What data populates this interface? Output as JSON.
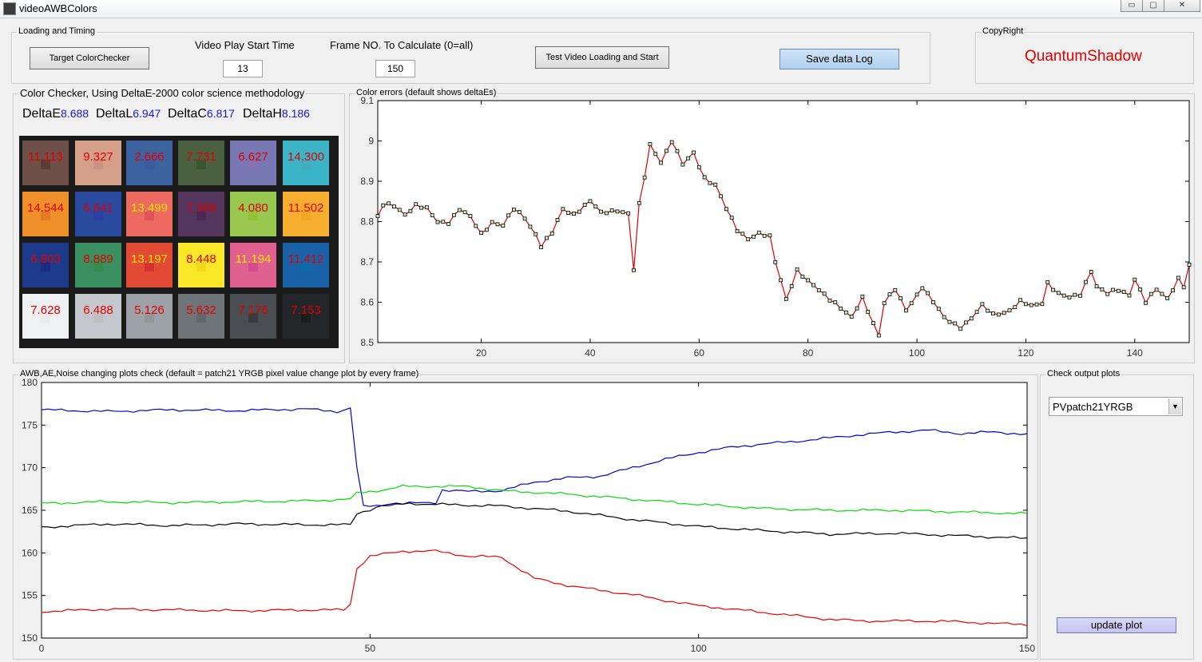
{
  "window": {
    "title": "videoAWBColors",
    "minimize": "▭",
    "maximize": "▢",
    "close": "✕"
  },
  "loading": {
    "group_title": "Loading and Timing",
    "target_button": "Target ColorChecker",
    "start_time_label": "Video Play Start Time",
    "start_time_value": "13",
    "frame_label": "Frame NO. To Calculate (0=all)",
    "frame_value": "150",
    "test_button": "Test Video Loading and Start",
    "save_button": "Save data Log"
  },
  "copyright": {
    "group_title": "CopyRight",
    "name": "QuantumShadow",
    "color": "#e00000"
  },
  "checker": {
    "group_title": "Color Checker, Using DeltaE-2000 color science methodology",
    "metrics": [
      {
        "key": "DeltaE",
        "value": "8.688"
      },
      {
        "key": "DeltaL",
        "value": "6.947"
      },
      {
        "key": "DeltaC",
        "value": "6.817"
      },
      {
        "key": "DeltaH",
        "value": "8.186"
      }
    ],
    "patches": [
      {
        "value": "11.113",
        "color": "#6e5048",
        "core": "#4a2a28",
        "text": "#e00000"
      },
      {
        "value": "9.327",
        "color": "#d4a08a",
        "core": "#c08a7a",
        "text": "#e00000"
      },
      {
        "value": "2.666",
        "color": "#3c62a0",
        "core": "#35589a",
        "text": "#e00000"
      },
      {
        "value": "7.731",
        "color": "#4a6040",
        "core": "#2e4a22",
        "text": "#e00000"
      },
      {
        "value": "6.627",
        "color": "#7878b4",
        "core": "#8a70b0",
        "text": "#e00000"
      },
      {
        "value": "14.300",
        "color": "#3ab4c6",
        "core": "#4aa8b8",
        "text": "#e00000"
      },
      {
        "value": "14.544",
        "color": "#f0902a",
        "core": "#d86a1e",
        "text": "#e00000"
      },
      {
        "value": "6.641",
        "color": "#2a4aa0",
        "core": "#2a38a8",
        "text": "#e00000"
      },
      {
        "value": "13.499",
        "color": "#ee6a60",
        "core": "#d84050",
        "text": "#ffe400"
      },
      {
        "value": "7.388",
        "color": "#54365e",
        "core": "#402048",
        "text": "#e00000"
      },
      {
        "value": "4.080",
        "color": "#98c850",
        "core": "#90c020",
        "text": "#e00000"
      },
      {
        "value": "11.502",
        "color": "#f6ae2e",
        "core": "#f0a018",
        "text": "#e00000"
      },
      {
        "value": "6.803",
        "color": "#1e3a8a",
        "core": "#16207a",
        "text": "#e00000"
      },
      {
        "value": "8.889",
        "color": "#3a9060",
        "core": "#2e8a3e",
        "text": "#e00000"
      },
      {
        "value": "13.197",
        "color": "#e24a36",
        "core": "#c81e30",
        "text": "#ffe400"
      },
      {
        "value": "8.448",
        "color": "#f8e828",
        "core": "#eccc10",
        "text": "#e00000"
      },
      {
        "value": "11.194",
        "color": "#e06090",
        "core": "#d03890",
        "text": "#ffe400"
      },
      {
        "value": "11.412",
        "color": "#1a62a8",
        "core": "#0a70a0",
        "text": "#e00000"
      },
      {
        "value": "7.628",
        "color": "#eef0f2",
        "core": "#e8e8e8",
        "text": "#e00000"
      },
      {
        "value": "6.488",
        "color": "#c4c8cc",
        "core": "#b8b8b8",
        "text": "#e00000"
      },
      {
        "value": "5.126",
        "color": "#9ca2a8",
        "core": "#8c8c8c",
        "text": "#e00000"
      },
      {
        "value": "5.632",
        "color": "#6e7478",
        "core": "#5c5c5c",
        "text": "#e00000"
      },
      {
        "value": "7.176",
        "color": "#4a4e52",
        "core": "#2c2c2c",
        "text": "#e00000"
      },
      {
        "value": "7.153",
        "color": "#24272a",
        "core": "#141414",
        "text": "#e00000"
      }
    ]
  },
  "errors_plot": {
    "group_title": "Color errors (default shows deltaEs)"
  },
  "awb_plot": {
    "group_title": "AWB,AE,Noise changing plots check (default = patch21 YRGB pixel value change plot by every frame)"
  },
  "check_output": {
    "group_title": "Check output plots",
    "selected": "PVpatch21YRGB",
    "update_button": "update plot"
  },
  "chart_data": [
    {
      "type": "line",
      "title": "Color errors (default shows deltaEs)",
      "xlim": [
        1,
        150
      ],
      "ylim": [
        8.5,
        9.1
      ],
      "xticks": [
        20,
        40,
        60,
        80,
        100,
        120,
        140
      ],
      "yticks": [
        8.5,
        8.6,
        8.7,
        8.8,
        8.9,
        9,
        9.1
      ],
      "series": [
        {
          "color": "#e00000",
          "marker": "square",
          "keypoints": [
            [
              1,
              8.81
            ],
            [
              2,
              8.84
            ],
            [
              4,
              8.84
            ],
            [
              6,
              8.82
            ],
            [
              8,
              8.84
            ],
            [
              10,
              8.83
            ],
            [
              12,
              8.8
            ],
            [
              14,
              8.8
            ],
            [
              16,
              8.83
            ],
            [
              18,
              8.81
            ],
            [
              20,
              8.77
            ],
            [
              22,
              8.8
            ],
            [
              24,
              8.79
            ],
            [
              26,
              8.83
            ],
            [
              28,
              8.81
            ],
            [
              30,
              8.77
            ],
            [
              31,
              8.74
            ],
            [
              33,
              8.77
            ],
            [
              35,
              8.83
            ],
            [
              37,
              8.82
            ],
            [
              40,
              8.85
            ],
            [
              42,
              8.82
            ],
            [
              45,
              8.83
            ],
            [
              47,
              8.82
            ],
            [
              48,
              8.68
            ],
            [
              49,
              8.84
            ],
            [
              50,
              8.91
            ],
            [
              51,
              8.99
            ],
            [
              53,
              8.95
            ],
            [
              55,
              9.0
            ],
            [
              57,
              8.94
            ],
            [
              59,
              8.97
            ],
            [
              61,
              8.91
            ],
            [
              63,
              8.89
            ],
            [
              65,
              8.83
            ],
            [
              67,
              8.78
            ],
            [
              69,
              8.76
            ],
            [
              71,
              8.77
            ],
            [
              73,
              8.76
            ],
            [
              74,
              8.7
            ],
            [
              76,
              8.61
            ],
            [
              78,
              8.68
            ],
            [
              80,
              8.65
            ],
            [
              83,
              8.62
            ],
            [
              85,
              8.6
            ],
            [
              88,
              8.56
            ],
            [
              90,
              8.61
            ],
            [
              93,
              8.52
            ],
            [
              94,
              8.6
            ],
            [
              96,
              8.63
            ],
            [
              98,
              8.58
            ],
            [
              101,
              8.64
            ],
            [
              103,
              8.6
            ],
            [
              105,
              8.56
            ],
            [
              108,
              8.54
            ],
            [
              110,
              8.56
            ],
            [
              112,
              8.59
            ],
            [
              114,
              8.57
            ],
            [
              117,
              8.58
            ],
            [
              119,
              8.6
            ],
            [
              121,
              8.59
            ],
            [
              123,
              8.6
            ],
            [
              124,
              8.65
            ],
            [
              126,
              8.62
            ],
            [
              128,
              8.61
            ],
            [
              130,
              8.62
            ],
            [
              132,
              8.68
            ],
            [
              133,
              8.64
            ],
            [
              135,
              8.62
            ],
            [
              137,
              8.63
            ],
            [
              139,
              8.62
            ],
            [
              140,
              8.66
            ],
            [
              142,
              8.6
            ],
            [
              144,
              8.63
            ],
            [
              146,
              8.61
            ],
            [
              148,
              8.66
            ],
            [
              149,
              8.64
            ],
            [
              150,
              8.69
            ]
          ]
        }
      ]
    },
    {
      "type": "line",
      "title": "AWB,AE,Noise changing plots check (default = patch21 YRGB pixel value change plot by every frame)",
      "xlim": [
        0,
        150
      ],
      "ylim": [
        150,
        180
      ],
      "xticks": [
        0,
        50,
        100,
        150
      ],
      "yticks": [
        150,
        155,
        160,
        165,
        170,
        175,
        180
      ],
      "series": [
        {
          "color": "#0000cc",
          "keypoints": [
            [
              0,
              176.8
            ],
            [
              10,
              176.6
            ],
            [
              20,
              176.8
            ],
            [
              30,
              176.7
            ],
            [
              40,
              176.9
            ],
            [
              45,
              176.6
            ],
            [
              47,
              177.0
            ],
            [
              48,
              170.0
            ],
            [
              49,
              165.4
            ],
            [
              55,
              165.8
            ],
            [
              60,
              165.9
            ],
            [
              61,
              167.4
            ],
            [
              65,
              167.2
            ],
            [
              70,
              167.3
            ],
            [
              75,
              168.3
            ],
            [
              80,
              168.8
            ],
            [
              85,
              169.0
            ],
            [
              90,
              170.0
            ],
            [
              95,
              171.0
            ],
            [
              100,
              171.8
            ],
            [
              105,
              172.4
            ],
            [
              110,
              172.8
            ],
            [
              115,
              173.1
            ],
            [
              120,
              173.5
            ],
            [
              125,
              173.9
            ],
            [
              130,
              174.2
            ],
            [
              135,
              174.4
            ],
            [
              140,
              174.0
            ],
            [
              145,
              174.2
            ],
            [
              150,
              173.9
            ]
          ]
        },
        {
          "color": "#00dd00",
          "keypoints": [
            [
              0,
              165.8
            ],
            [
              10,
              166.0
            ],
            [
              20,
              165.9
            ],
            [
              30,
              166.0
            ],
            [
              40,
              166.1
            ],
            [
              47,
              166.3
            ],
            [
              48,
              167.0
            ],
            [
              52,
              167.4
            ],
            [
              55,
              167.8
            ],
            [
              65,
              167.8
            ],
            [
              70,
              167.3
            ],
            [
              80,
              166.9
            ],
            [
              90,
              166.3
            ],
            [
              100,
              165.7
            ],
            [
              110,
              165.2
            ],
            [
              120,
              165.0
            ],
            [
              130,
              165.0
            ],
            [
              140,
              164.8
            ],
            [
              150,
              164.6
            ]
          ]
        },
        {
          "color": "#000000",
          "keypoints": [
            [
              0,
              163.0
            ],
            [
              10,
              163.4
            ],
            [
              20,
              163.2
            ],
            [
              30,
              163.4
            ],
            [
              40,
              163.3
            ],
            [
              47,
              163.3
            ],
            [
              48,
              164.6
            ],
            [
              52,
              165.6
            ],
            [
              56,
              165.8
            ],
            [
              60,
              165.7
            ],
            [
              70,
              165.5
            ],
            [
              80,
              164.9
            ],
            [
              90,
              163.9
            ],
            [
              100,
              163.1
            ],
            [
              110,
              162.6
            ],
            [
              120,
              162.2
            ],
            [
              130,
              162.3
            ],
            [
              140,
              162.0
            ],
            [
              150,
              161.7
            ]
          ]
        },
        {
          "color": "#ee0000",
          "keypoints": [
            [
              0,
              153.1
            ],
            [
              10,
              153.4
            ],
            [
              20,
              153.3
            ],
            [
              30,
              153.2
            ],
            [
              40,
              153.3
            ],
            [
              46,
              153.3
            ],
            [
              47,
              154.0
            ],
            [
              48,
              158.2
            ],
            [
              50,
              159.6
            ],
            [
              55,
              160.2
            ],
            [
              60,
              160.2
            ],
            [
              65,
              159.6
            ],
            [
              70,
              159.5
            ],
            [
              75,
              157.0
            ],
            [
              80,
              156.2
            ],
            [
              85,
              155.6
            ],
            [
              90,
              155.1
            ],
            [
              95,
              154.4
            ],
            [
              100,
              153.8
            ],
            [
              105,
              153.4
            ],
            [
              110,
              153.0
            ],
            [
              115,
              152.6
            ],
            [
              120,
              152.2
            ],
            [
              125,
              152.0
            ],
            [
              130,
              152.0
            ],
            [
              135,
              152.0
            ],
            [
              140,
              151.9
            ],
            [
              145,
              151.7
            ],
            [
              150,
              151.6
            ]
          ]
        }
      ]
    }
  ]
}
